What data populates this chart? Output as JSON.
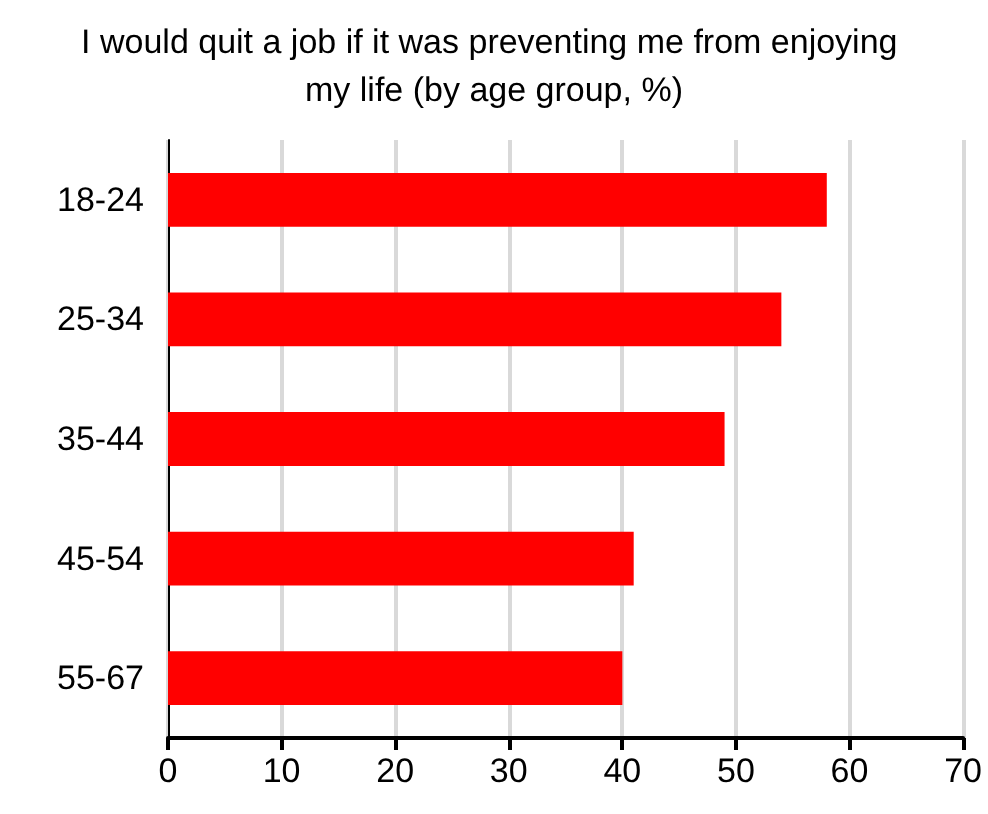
{
  "chart_data": {
    "type": "bar",
    "orientation": "horizontal",
    "title": "I would quit a job if it was preventing me from enjoying my life (by age group, %)",
    "categories": [
      "18-24",
      "25-34",
      "35-44",
      "45-54",
      "55-67"
    ],
    "values": [
      58,
      54,
      49,
      41,
      40
    ],
    "color": "#ff0000",
    "xlim": [
      0,
      70
    ],
    "xticks": [
      0,
      10,
      20,
      30,
      40,
      50,
      60,
      70
    ],
    "grid": "x"
  }
}
